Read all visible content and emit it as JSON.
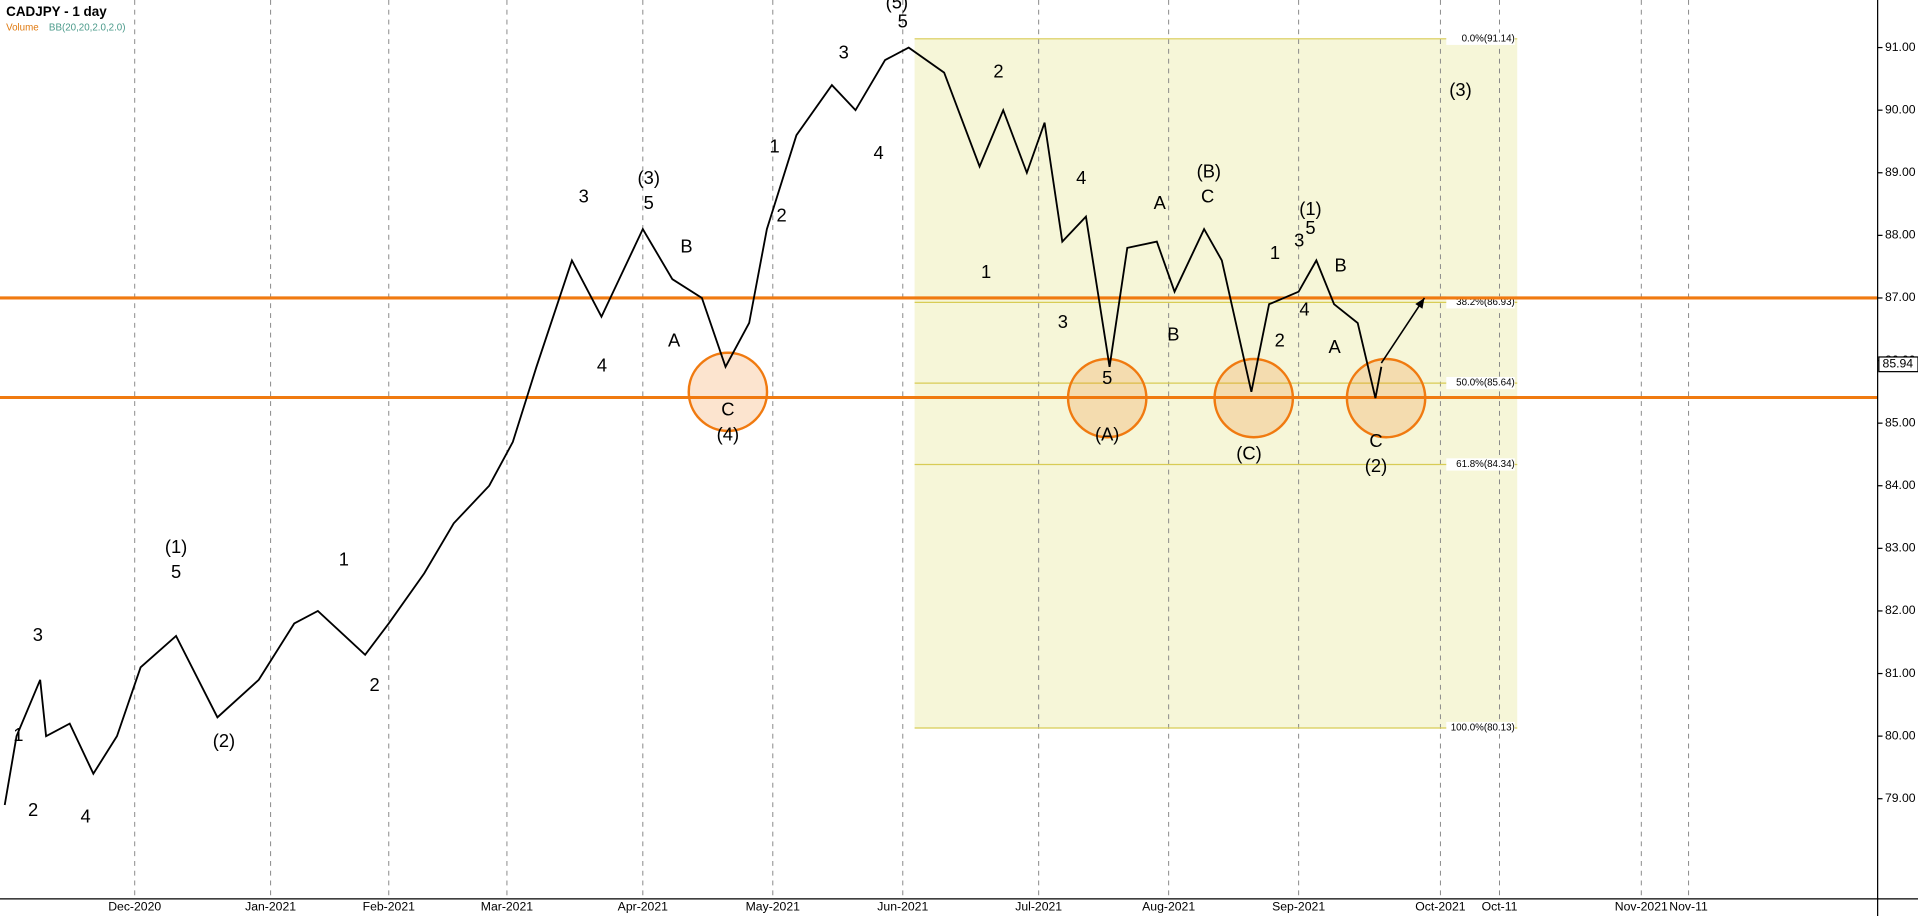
{
  "chart_data": {
    "type": "line",
    "title": "CADJPY - 1 day",
    "legend": [
      "Volume",
      "BB(20,20,2.0,2.0)"
    ],
    "x": [
      -22,
      -20,
      -16,
      -15,
      -11,
      -7,
      -3,
      1,
      7,
      14,
      21,
      27,
      31,
      39,
      43,
      49,
      54,
      60,
      64,
      68,
      74,
      79,
      86,
      91,
      96,
      100,
      104,
      107,
      112,
      118,
      122,
      127,
      131,
      137,
      143,
      147,
      151,
      154,
      157,
      161,
      165,
      168,
      173,
      176,
      181,
      184,
      189,
      192,
      197,
      200,
      203,
      207,
      210,
      211
    ],
    "series": [
      {
        "name": "CADJPY",
        "color": "#000000",
        "values": [
          78.9,
          80.0,
          80.9,
          80.0,
          80.2,
          79.4,
          80.0,
          81.1,
          81.6,
          80.3,
          80.9,
          81.8,
          82.0,
          81.3,
          81.8,
          82.6,
          83.4,
          84.0,
          84.7,
          85.9,
          87.6,
          86.7,
          88.1,
          87.3,
          87.0,
          85.9,
          86.6,
          88.1,
          89.6,
          90.4,
          90.0,
          90.8,
          91.0,
          90.6,
          89.1,
          90.0,
          89.0,
          89.8,
          87.9,
          88.3,
          85.9,
          87.8,
          87.9,
          87.1,
          88.1,
          87.6,
          85.5,
          86.9,
          87.1,
          87.6,
          86.9,
          86.6,
          85.4,
          85.9
        ]
      }
    ],
    "xlim": [
      -22.8,
      295
    ],
    "ylim": [
      77.4,
      91.76
    ],
    "xticks": [
      {
        "value": 0,
        "label": "Dec-2020"
      },
      {
        "value": 23,
        "label": "Jan-2021"
      },
      {
        "value": 43,
        "label": "Feb-2021"
      },
      {
        "value": 63,
        "label": "Mar-2021"
      },
      {
        "value": 86,
        "label": "Apr-2021"
      },
      {
        "value": 108,
        "label": "May-2021"
      },
      {
        "value": 130,
        "label": "Jun-2021"
      },
      {
        "value": 153,
        "label": "Jul-2021"
      },
      {
        "value": 175,
        "label": "Aug-2021"
      },
      {
        "value": 197,
        "label": "Sep-2021"
      },
      {
        "value": 221,
        "label": "Oct-2021"
      },
      {
        "value": 231,
        "label": "Oct-11"
      },
      {
        "value": 255,
        "label": "Nov-2021"
      },
      {
        "value": 263,
        "label": "Nov-11"
      }
    ],
    "yticks": [
      {
        "value": 79,
        "label": "79.00"
      },
      {
        "value": 80,
        "label": "80.00"
      },
      {
        "value": 81,
        "label": "81.00"
      },
      {
        "value": 82,
        "label": "82.00"
      },
      {
        "value": 83,
        "label": "83.00"
      },
      {
        "value": 84,
        "label": "84.00"
      },
      {
        "value": 85,
        "label": "85.00"
      },
      {
        "value": 86,
        "label": "86.00"
      },
      {
        "value": 87,
        "label": "87.00"
      },
      {
        "value": 88,
        "label": "88.00"
      },
      {
        "value": 89,
        "label": "89.00"
      },
      {
        "value": 90,
        "label": "90.00"
      },
      {
        "value": 91,
        "label": "91.00"
      }
    ],
    "last_price": {
      "value": 85.94,
      "label": "85.94"
    },
    "levels": [
      87.0,
      85.41
    ],
    "level_color": "#f07a10",
    "fib_x": [
      132,
      234
    ],
    "fib_levels": [
      {
        "value": 91.14,
        "label": "0.0%(91.14)"
      },
      {
        "value": 86.93,
        "label": "38.2%(86.93)"
      },
      {
        "value": 85.64,
        "label": "50.0%(85.64)"
      },
      {
        "value": 84.34,
        "label": "61.8%(84.34)"
      },
      {
        "value": 80.13,
        "label": "100.0%(80.13)"
      }
    ],
    "circles": [
      {
        "x": 100.4,
        "y": 85.5
      },
      {
        "x": 164.6,
        "y": 85.4
      },
      {
        "x": 189.4,
        "y": 85.4
      },
      {
        "x": 211.8,
        "y": 85.4
      }
    ],
    "arrow": {
      "x": [
        211,
        218.3
      ],
      "y": [
        85.96,
        87.0
      ]
    },
    "annotations": [
      {
        "text": "(5)",
        "x": 129,
        "y": 91.7
      },
      {
        "text": "5",
        "x": 130,
        "y": 91.4
      },
      {
        "text": "3",
        "x": 120,
        "y": 90.9
      },
      {
        "text": "(3)",
        "x": 87,
        "y": 88.9
      },
      {
        "text": "5",
        "x": 87,
        "y": 88.5
      },
      {
        "text": "3",
        "x": 76,
        "y": 88.6
      },
      {
        "text": "B",
        "x": 93.4,
        "y": 87.8
      },
      {
        "text": "A",
        "x": 91.3,
        "y": 86.3
      },
      {
        "text": "C",
        "x": 100.4,
        "y": 85.2
      },
      {
        "text": "(4)",
        "x": 100.4,
        "y": 84.8
      },
      {
        "text": "4",
        "x": 79.1,
        "y": 85.9
      },
      {
        "text": "1",
        "x": 108.3,
        "y": 89.4
      },
      {
        "text": "2",
        "x": 109.5,
        "y": 88.3
      },
      {
        "text": "4",
        "x": 125.9,
        "y": 89.3
      },
      {
        "text": "(1)",
        "x": 7,
        "y": 83.0
      },
      {
        "text": "5",
        "x": 7,
        "y": 82.6
      },
      {
        "text": "3",
        "x": -16.4,
        "y": 81.6
      },
      {
        "text": "1",
        "x": -19.7,
        "y": 80.0
      },
      {
        "text": "2",
        "x": -17.2,
        "y": 78.8
      },
      {
        "text": "4",
        "x": -8.3,
        "y": 78.7
      },
      {
        "text": "(2)",
        "x": 15.1,
        "y": 79.9
      },
      {
        "text": "1",
        "x": 35.4,
        "y": 82.8
      },
      {
        "text": "2",
        "x": 40.6,
        "y": 80.8
      },
      {
        "text": "2",
        "x": 146.2,
        "y": 90.6
      },
      {
        "text": "1",
        "x": 144.1,
        "y": 87.4
      },
      {
        "text": "4",
        "x": 160.2,
        "y": 88.9
      },
      {
        "text": "3",
        "x": 157.1,
        "y": 86.6
      },
      {
        "text": "5",
        "x": 164.6,
        "y": 85.7
      },
      {
        "text": "(A)",
        "x": 164.6,
        "y": 84.8
      },
      {
        "text": "A",
        "x": 173.5,
        "y": 88.5
      },
      {
        "text": "(B)",
        "x": 181.8,
        "y": 89.0
      },
      {
        "text": "C",
        "x": 181.6,
        "y": 88.6
      },
      {
        "text": "B",
        "x": 175.8,
        "y": 86.4
      },
      {
        "text": "(C)",
        "x": 188.6,
        "y": 84.5
      },
      {
        "text": "1",
        "x": 193,
        "y": 87.7
      },
      {
        "text": "2",
        "x": 193.8,
        "y": 86.3
      },
      {
        "text": "4",
        "x": 198,
        "y": 86.8
      },
      {
        "text": "3",
        "x": 197.1,
        "y": 87.9
      },
      {
        "text": "(1)",
        "x": 199,
        "y": 88.4
      },
      {
        "text": "5",
        "x": 199,
        "y": 88.1
      },
      {
        "text": "B",
        "x": 204.1,
        "y": 87.5
      },
      {
        "text": "A",
        "x": 203.1,
        "y": 86.2
      },
      {
        "text": "C",
        "x": 210.1,
        "y": 84.7
      },
      {
        "text": "(2)",
        "x": 210.1,
        "y": 84.3
      },
      {
        "text": "(3)",
        "x": 224.4,
        "y": 90.3
      }
    ]
  }
}
